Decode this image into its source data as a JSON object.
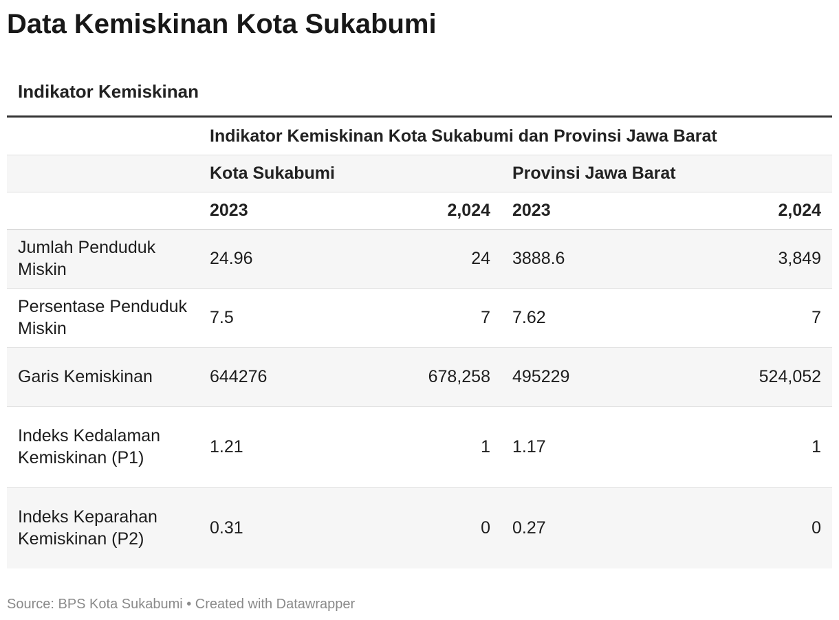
{
  "title": "Data Kemiskinan Kota Sukabumi",
  "table_title": "Indikator Kemiskinan",
  "group_header": "Indikator Kemiskinan Kota Sukabumi dan Provinsi Jawa Barat",
  "region_headers": [
    "Kota Sukabumi",
    "Provinsi Jawa Barat"
  ],
  "year_headers": [
    "2023",
    "2,024",
    "2023",
    "2,024"
  ],
  "rows": [
    {
      "label": "Jumlah Penduduk Miskin",
      "values": [
        "24.96",
        "24",
        "3888.6",
        "3,849"
      ]
    },
    {
      "label": "Persentase Penduduk Miskin",
      "values": [
        "7.5",
        "7",
        "7.62",
        "7"
      ]
    },
    {
      "label": "Garis Kemiskinan",
      "values": [
        "644276",
        "678,258",
        "495229",
        "524,052"
      ]
    },
    {
      "label": "Indeks Kedalaman Kemiskinan (P1)",
      "values": [
        "1.21",
        "1",
        "1.17",
        "1"
      ]
    },
    {
      "label": "Indeks Keparahan Kemiskinan (P2)",
      "values": [
        "0.31",
        "0",
        "0.27",
        "0"
      ]
    }
  ],
  "footer": "Source: BPS Kota Sukabumi • Created with Datawrapper",
  "chart_data": {
    "type": "table",
    "title": "Data Kemiskinan Kota Sukabumi",
    "subtitle": "Indikator Kemiskinan",
    "columns": [
      {
        "region": "Kota Sukabumi",
        "year": "2023"
      },
      {
        "region": "Kota Sukabumi",
        "year": "2,024"
      },
      {
        "region": "Provinsi Jawa Barat",
        "year": "2023"
      },
      {
        "region": "Provinsi Jawa Barat",
        "year": "2,024"
      }
    ],
    "rows": [
      {
        "indicator": "Jumlah Penduduk Miskin",
        "values": [
          24.96,
          24,
          3888.6,
          3849
        ]
      },
      {
        "indicator": "Persentase Penduduk Miskin",
        "values": [
          7.5,
          7,
          7.62,
          7
        ]
      },
      {
        "indicator": "Garis Kemiskinan",
        "values": [
          644276,
          678258,
          495229,
          524052
        ]
      },
      {
        "indicator": "Indeks Kedalaman Kemiskinan (P1)",
        "values": [
          1.21,
          1,
          1.17,
          1
        ]
      },
      {
        "indicator": "Indeks Keparahan Kemiskinan (P2)",
        "values": [
          0.31,
          0,
          0.27,
          0
        ]
      }
    ]
  }
}
